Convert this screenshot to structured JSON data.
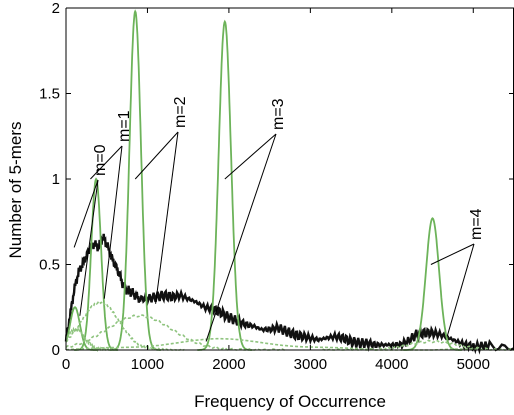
{
  "chart_data": {
    "type": "line",
    "title": "",
    "xlabel": "Frequency of Occurrence",
    "ylabel": "Number of 5-mers",
    "xlim": [
      0,
      5500
    ],
    "ylim": [
      0,
      2
    ],
    "x_ticks": [
      0,
      1000,
      2000,
      3000,
      4000,
      5000
    ],
    "x_tick_labels": [
      "0",
      "1000",
      "2000",
      "3000",
      "4000",
      "5000"
    ],
    "y_ticks": [
      0,
      0.5,
      1,
      1.5,
      2
    ],
    "y_tick_labels": [
      "0",
      "0.5",
      "1",
      "1.5",
      "2"
    ],
    "grid": false,
    "colors": {
      "observed": "#111111",
      "peaks": "#6db35a",
      "components": "#8fc47f",
      "annotation": "#000000"
    },
    "series": [
      {
        "role": "observed",
        "points": [
          [
            0,
            0.05
          ],
          [
            50,
            0.2
          ],
          [
            100,
            0.35
          ],
          [
            150,
            0.45
          ],
          [
            200,
            0.5
          ],
          [
            250,
            0.55
          ],
          [
            300,
            0.6
          ],
          [
            350,
            0.62
          ],
          [
            400,
            0.6
          ],
          [
            450,
            0.66
          ],
          [
            500,
            0.62
          ],
          [
            550,
            0.55
          ],
          [
            600,
            0.5
          ],
          [
            650,
            0.45
          ],
          [
            700,
            0.38
          ],
          [
            750,
            0.35
          ],
          [
            800,
            0.34
          ],
          [
            850,
            0.32
          ],
          [
            900,
            0.3
          ],
          [
            1000,
            0.3
          ],
          [
            1100,
            0.31
          ],
          [
            1200,
            0.32
          ],
          [
            1300,
            0.31
          ],
          [
            1400,
            0.32
          ],
          [
            1500,
            0.3
          ],
          [
            1600,
            0.28
          ],
          [
            1700,
            0.25
          ],
          [
            1800,
            0.24
          ],
          [
            1900,
            0.22
          ],
          [
            2000,
            0.19
          ],
          [
            2100,
            0.17
          ],
          [
            2200,
            0.15
          ],
          [
            2300,
            0.14
          ],
          [
            2400,
            0.12
          ],
          [
            2500,
            0.12
          ],
          [
            2600,
            0.13
          ],
          [
            2700,
            0.11
          ],
          [
            2800,
            0.09
          ],
          [
            2900,
            0.08
          ],
          [
            3000,
            0.07
          ],
          [
            3100,
            0.06
          ],
          [
            3200,
            0.07
          ],
          [
            3300,
            0.08
          ],
          [
            3400,
            0.07
          ],
          [
            3500,
            0.05
          ],
          [
            3600,
            0.04
          ],
          [
            3700,
            0.04
          ],
          [
            3800,
            0.03
          ],
          [
            3900,
            0.03
          ],
          [
            4000,
            0.03
          ],
          [
            4100,
            0.03
          ],
          [
            4200,
            0.05
          ],
          [
            4300,
            0.09
          ],
          [
            4400,
            0.1
          ],
          [
            4500,
            0.1
          ],
          [
            4600,
            0.09
          ],
          [
            4700,
            0.07
          ],
          [
            4800,
            0.05
          ],
          [
            4900,
            0.03
          ],
          [
            5000,
            0.02
          ],
          [
            5200,
            0.02
          ],
          [
            5500,
            0.01
          ]
        ]
      },
      {
        "role": "peak",
        "label": "m=0",
        "center": 110,
        "height": 0.25,
        "width": 60
      },
      {
        "role": "peak",
        "label": "m=1",
        "center": 370,
        "height": 1.0,
        "width": 60
      },
      {
        "role": "peak",
        "label": "m=2",
        "center": 850,
        "height": 1.98,
        "width": 70
      },
      {
        "role": "peak",
        "label": "m=3",
        "center": 1950,
        "height": 1.92,
        "width": 75
      },
      {
        "role": "peak",
        "label": "m=4",
        "center": 4500,
        "height": 0.77,
        "width": 80
      },
      {
        "role": "component",
        "label": "m=0",
        "center": 120,
        "height": 0.12,
        "width": 110
      },
      {
        "role": "component",
        "label": "m=1",
        "center": 420,
        "height": 0.28,
        "width": 230
      },
      {
        "role": "component",
        "label": "m=2",
        "center": 900,
        "height": 0.2,
        "width": 400
      },
      {
        "role": "component",
        "label": "m=3",
        "center": 1900,
        "height": 0.06,
        "width": 700
      },
      {
        "role": "component",
        "label": "m=4",
        "center": 4500,
        "height": 0.05,
        "width": 300
      }
    ],
    "annotations": [
      {
        "label": "m=0",
        "targets": [
          [
            100,
            0.6
          ],
          [
            170,
            0.2
          ]
        ]
      },
      {
        "label": "m=1",
        "targets": [
          [
            300,
            1.0
          ],
          [
            470,
            0.3
          ]
        ]
      },
      {
        "label": "m=2",
        "targets": [
          [
            850,
            1.0
          ],
          [
            1100,
            0.27
          ]
        ]
      },
      {
        "label": "m=3",
        "targets": [
          [
            1950,
            1.0
          ],
          [
            1720,
            0.05
          ]
        ]
      },
      {
        "label": "m=4",
        "targets": [
          [
            4480,
            0.5
          ],
          [
            4680,
            0.08
          ]
        ]
      }
    ]
  }
}
